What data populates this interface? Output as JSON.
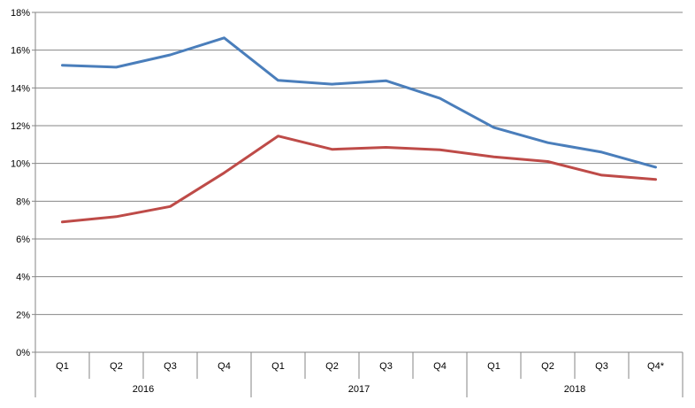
{
  "chart_data": {
    "type": "line",
    "title": "",
    "xlabel": "",
    "ylabel": "",
    "ylim": [
      0,
      18
    ],
    "y_tick_step": 2,
    "y_tick_suffix": "%",
    "grid": "horizontal",
    "legend": "none",
    "categories": [
      "Q1",
      "Q2",
      "Q3",
      "Q4",
      "Q1",
      "Q2",
      "Q3",
      "Q4",
      "Q1",
      "Q2",
      "Q3",
      "Q4*"
    ],
    "groups": [
      {
        "label": "2016",
        "count": 4
      },
      {
        "label": "2017",
        "count": 4
      },
      {
        "label": "2018",
        "count": 4
      }
    ],
    "series": [
      {
        "color": "#4a7ebb",
        "values": [
          15.2,
          15.1,
          15.75,
          16.65,
          14.4,
          14.2,
          14.38,
          13.45,
          11.9,
          11.1,
          10.6,
          9.8
        ]
      },
      {
        "color": "#be4b48",
        "values": [
          6.9,
          7.18,
          7.72,
          9.5,
          11.45,
          10.75,
          10.85,
          10.72,
          10.35,
          10.1,
          9.38,
          9.15
        ]
      }
    ]
  }
}
